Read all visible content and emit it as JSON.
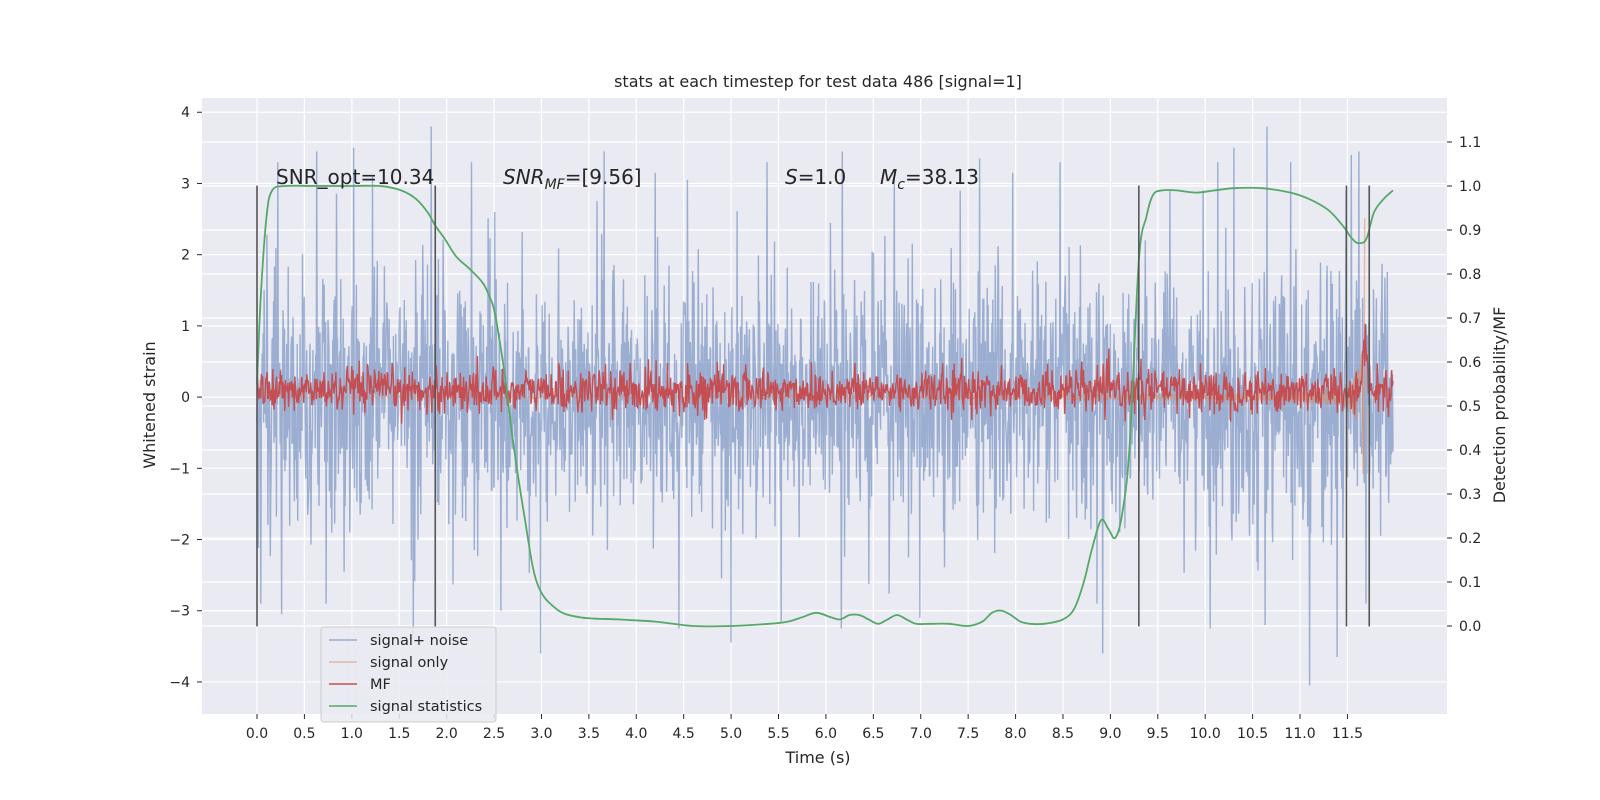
{
  "chart_data": {
    "type": "line",
    "title": "stats at each timestep for test data 486 [signal=1]",
    "xlabel": "Time (s)",
    "ylabel_left": "Whitened strain",
    "ylabel_right": "Detection probability/MF",
    "xlim": [
      -0.58,
      12.55
    ],
    "ylim_left": [
      -4.45,
      4.2
    ],
    "ylim_right": [
      -0.2,
      1.2
    ],
    "x_ticks": [
      "0.0",
      "0.5",
      "1.0",
      "1.5",
      "2.0",
      "2.5",
      "3.0",
      "3.5",
      "4.0",
      "4.5",
      "5.0",
      "5.5",
      "6.0",
      "6.5",
      "7.0",
      "7.5",
      "8.0",
      "8.5",
      "9.0",
      "9.5",
      "10.0",
      "10.5",
      "11.0",
      "11.5"
    ],
    "y_ticks_left": [
      "4",
      "3",
      "2",
      "1",
      "0",
      "−1",
      "−2",
      "−3",
      "−4"
    ],
    "y_ticks_right": [
      "1.1",
      "1.0",
      "0.9",
      "0.8",
      "0.7",
      "0.6",
      "0.5",
      "0.4",
      "0.3",
      "0.2",
      "0.1",
      "0.0"
    ],
    "grid": true,
    "legend_position": "lower-left",
    "annotations": {
      "snr_opt": {
        "plain": "SNR_opt=10.34"
      },
      "snr_mf": {
        "base": "SNR",
        "sub": "MF",
        "rest": "=[9.56]"
      },
      "s_stat": {
        "base": "S",
        "rest": "=1.0"
      },
      "mc": {
        "base": "M",
        "sub": "c",
        "rest": "=38.13"
      }
    },
    "vertical_markers": [
      0.0,
      1.88,
      9.3,
      11.49,
      11.73
    ],
    "series": [
      {
        "name": "signal+ noise",
        "color": "#4c72b0",
        "axis": "left",
        "description_free": true,
        "t_range": [
          0.0,
          11.98
        ],
        "std": 0.95,
        "peaks_high": [
          [
            0.22,
            3.3
          ],
          [
            0.63,
            3.45
          ],
          [
            1.02,
            3.5
          ],
          [
            1.22,
            3.1
          ],
          [
            1.84,
            3.8
          ],
          [
            2.26,
            3.3
          ],
          [
            3.66,
            3.45
          ],
          [
            4.2,
            3.15
          ],
          [
            4.54,
            3.05
          ],
          [
            5.38,
            3.3
          ],
          [
            6.17,
            3.45
          ],
          [
            6.72,
            3.1
          ],
          [
            7.62,
            3.35
          ],
          [
            7.97,
            3.15
          ],
          [
            8.47,
            3.3
          ],
          [
            10.13,
            3.3
          ],
          [
            10.3,
            3.5
          ],
          [
            10.65,
            3.8
          ],
          [
            10.9,
            3.3
          ],
          [
            11.54,
            3.4
          ],
          [
            11.62,
            3.45
          ]
        ],
        "peaks_low": [
          [
            0.04,
            -2.9
          ],
          [
            0.26,
            -3.05
          ],
          [
            0.73,
            -2.9
          ],
          [
            1.65,
            -3.35
          ],
          [
            2.57,
            -3.0
          ],
          [
            2.99,
            -3.6
          ],
          [
            4.45,
            -3.25
          ],
          [
            5.0,
            -3.45
          ],
          [
            5.53,
            -3.15
          ],
          [
            6.16,
            -3.25
          ],
          [
            6.99,
            -3.1
          ],
          [
            8.92,
            -3.6
          ],
          [
            10.05,
            -3.25
          ],
          [
            10.63,
            -3.2
          ],
          [
            11.39,
            -3.65
          ],
          [
            11.1,
            -4.05
          ]
        ]
      },
      {
        "name": "signal only",
        "color": "#dd8452",
        "axis": "left",
        "t_range": [
          0.0,
          11.69
        ],
        "merger_time": 11.68,
        "peak_amplitude": 2.6
      },
      {
        "name": "MF",
        "color": "#c44e52",
        "axis": "right",
        "t_range": [
          0.0,
          11.98
        ],
        "baseline": 0.535,
        "noise_amplitude": 0.025,
        "peak": [
          11.69,
          0.68
        ]
      },
      {
        "name": "signal statistics",
        "color": "#55a868",
        "axis": "right",
        "x": [
          0.0,
          0.04,
          0.1,
          0.16,
          0.3,
          0.6,
          1.0,
          1.3,
          1.52,
          1.68,
          1.8,
          1.88,
          1.98,
          2.1,
          2.25,
          2.38,
          2.45,
          2.5,
          2.55,
          2.62,
          2.7,
          2.82,
          2.95,
          3.15,
          3.4,
          3.8,
          4.2,
          4.6,
          5.0,
          5.4,
          5.6,
          5.75,
          5.9,
          6.05,
          6.15,
          6.25,
          6.35,
          6.45,
          6.55,
          6.65,
          6.75,
          6.85,
          6.95,
          7.1,
          7.3,
          7.5,
          7.65,
          7.75,
          7.85,
          7.95,
          8.05,
          8.15,
          8.3,
          8.5,
          8.62,
          8.72,
          8.8,
          8.9,
          8.98,
          9.05,
          9.12,
          9.2,
          9.3,
          9.38,
          9.45,
          9.55,
          9.7,
          9.9,
          10.1,
          10.3,
          10.6,
          10.9,
          11.1,
          11.3,
          11.45,
          11.55,
          11.62,
          11.7,
          11.78,
          11.88,
          11.98
        ],
        "y": [
          0.55,
          0.75,
          0.93,
          0.99,
          1.0,
          1.0,
          1.0,
          1.0,
          0.99,
          0.97,
          0.94,
          0.91,
          0.88,
          0.84,
          0.81,
          0.78,
          0.75,
          0.72,
          0.66,
          0.56,
          0.42,
          0.25,
          0.1,
          0.04,
          0.02,
          0.015,
          0.01,
          0.0,
          0.0,
          0.005,
          0.01,
          0.02,
          0.03,
          0.02,
          0.015,
          0.025,
          0.025,
          0.015,
          0.005,
          0.015,
          0.025,
          0.015,
          0.005,
          0.005,
          0.005,
          0.0,
          0.01,
          0.03,
          0.035,
          0.025,
          0.01,
          0.005,
          0.005,
          0.015,
          0.04,
          0.1,
          0.17,
          0.24,
          0.22,
          0.2,
          0.25,
          0.4,
          0.83,
          0.93,
          0.98,
          0.99,
          0.99,
          0.985,
          0.99,
          0.995,
          0.995,
          0.985,
          0.97,
          0.945,
          0.91,
          0.88,
          0.87,
          0.88,
          0.94,
          0.97,
          0.99
        ]
      }
    ]
  }
}
